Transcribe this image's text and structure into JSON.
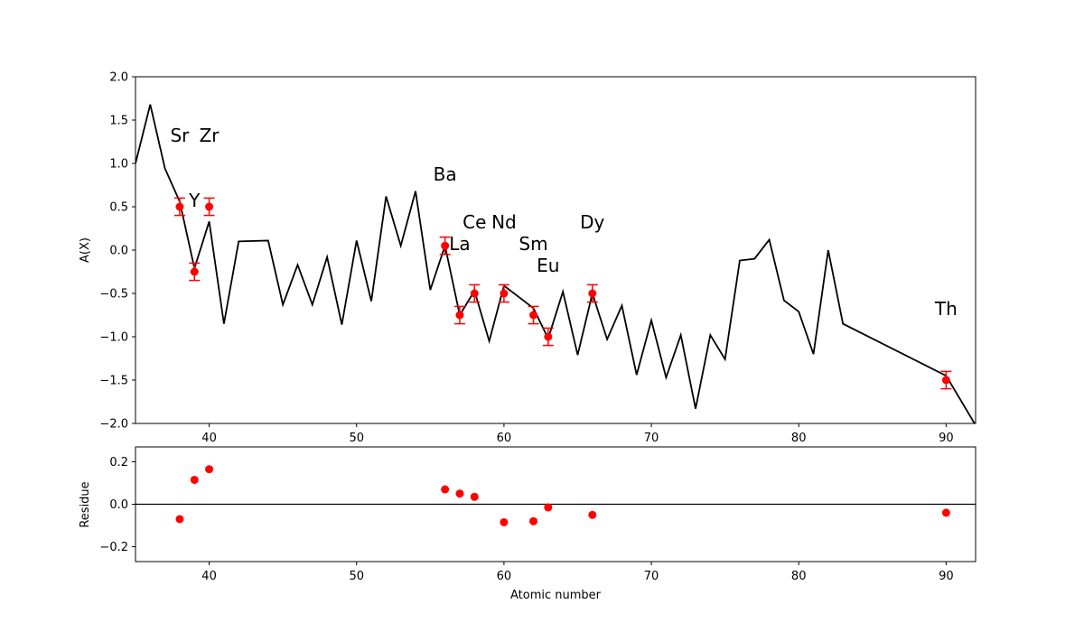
{
  "chart_data": [
    {
      "type": "line",
      "xlabel": "",
      "ylabel": "A(X)",
      "xlim": [
        35,
        92
      ],
      "ylim": [
        -2.0,
        2.0
      ],
      "grid": false,
      "x_ticks": [
        "40",
        "50",
        "60",
        "70",
        "80",
        "90"
      ],
      "y_ticks": [
        "-2.0",
        "-1.5",
        "-1.0",
        "-0.5",
        "0.0",
        "0.5",
        "1.0",
        "1.5",
        "2.0"
      ],
      "model_line": {
        "color": "#000000",
        "x": [
          35,
          36,
          37,
          38,
          39,
          40,
          41,
          42,
          44,
          45,
          46,
          47,
          48,
          49,
          50,
          51,
          52,
          53,
          54,
          55,
          56,
          57,
          58,
          59,
          60,
          62,
          63,
          64,
          65,
          66,
          67,
          68,
          69,
          70,
          71,
          72,
          73,
          74,
          75,
          76,
          77,
          78,
          79,
          80,
          81,
          82,
          83,
          90,
          92
        ],
        "y": [
          1.0,
          1.68,
          0.94,
          0.56,
          -0.21,
          0.33,
          -0.85,
          0.1,
          0.11,
          -0.63,
          -0.17,
          -0.63,
          -0.08,
          -0.86,
          0.11,
          -0.59,
          0.62,
          0.05,
          0.68,
          -0.46,
          0.05,
          -0.75,
          -0.47,
          -1.05,
          -0.41,
          -0.67,
          -1.02,
          -0.48,
          -1.21,
          -0.5,
          -1.03,
          -0.64,
          -1.44,
          -0.81,
          -1.47,
          -0.98,
          -1.83,
          -0.98,
          -1.26,
          -0.12,
          -0.1,
          0.12,
          -0.58,
          -0.71,
          -1.2,
          0.0,
          -0.85,
          -1.45,
          -2.02
        ]
      },
      "observations": {
        "color": "#ff0000",
        "x": [
          38,
          39,
          40,
          56,
          57,
          58,
          60,
          62,
          63,
          66,
          90
        ],
        "y": [
          0.5,
          -0.25,
          0.5,
          0.05,
          -0.75,
          -0.5,
          -0.5,
          -0.75,
          -1.0,
          -0.5,
          -1.5
        ],
        "yerr": [
          0.1,
          0.1,
          0.1,
          0.1,
          0.1,
          0.1,
          0.1,
          0.1,
          0.1,
          0.1,
          0.1
        ]
      },
      "annotations": [
        {
          "text": "Sr",
          "x": 38,
          "y": 1.25
        },
        {
          "text": "Zr",
          "x": 40,
          "y": 1.25
        },
        {
          "text": "Y",
          "x": 39,
          "y": 0.5
        },
        {
          "text": "Ba",
          "x": 56,
          "y": 0.8
        },
        {
          "text": "Ce",
          "x": 58,
          "y": 0.25
        },
        {
          "text": "Nd",
          "x": 60,
          "y": 0.25
        },
        {
          "text": "La",
          "x": 57,
          "y": 0.0
        },
        {
          "text": "Sm",
          "x": 62,
          "y": 0.0
        },
        {
          "text": "Eu",
          "x": 63,
          "y": -0.25
        },
        {
          "text": "Dy",
          "x": 66,
          "y": 0.25
        },
        {
          "text": "Th",
          "x": 90,
          "y": -0.75
        }
      ]
    },
    {
      "type": "scatter",
      "xlabel": "Atomic number",
      "ylabel": "Residue",
      "xlim": [
        35,
        92
      ],
      "ylim": [
        -0.27,
        0.27
      ],
      "grid": false,
      "x_ticks": [
        "40",
        "50",
        "60",
        "70",
        "80",
        "90"
      ],
      "y_ticks": [
        "-0.2",
        "0.0",
        "0.2"
      ],
      "zero_line": 0.0,
      "points": {
        "color": "#ff0000",
        "x": [
          38,
          39,
          40,
          56,
          57,
          58,
          60,
          62,
          63,
          66,
          90
        ],
        "y": [
          -0.07,
          0.115,
          0.165,
          0.07,
          0.05,
          0.035,
          -0.085,
          -0.08,
          -0.015,
          -0.05,
          -0.04
        ]
      }
    }
  ]
}
